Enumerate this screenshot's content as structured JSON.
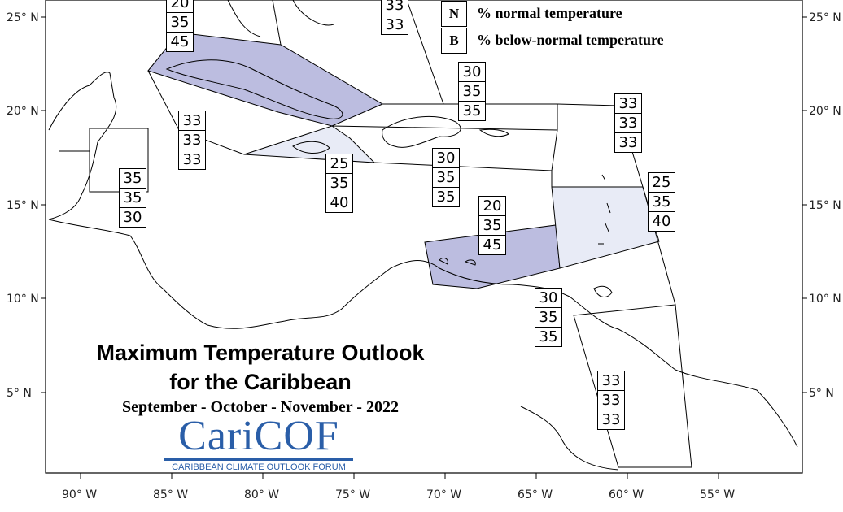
{
  "map_title": {
    "line1": "Maximum Temperature Outlook",
    "line2": "for the Caribbean",
    "period": "September - October - November - 2022"
  },
  "logo": {
    "wordmark": "CariCOF",
    "subtitle": "CARIBBEAN CLIMATE OUTLOOK FORUM"
  },
  "legend": [
    {
      "key": "N",
      "text": "% normal temperature"
    },
    {
      "key": "B",
      "text": "% below-normal temperature"
    }
  ],
  "lat_labels": [
    "25° N",
    "20° N",
    "15° N",
    "10° N",
    "5° N"
  ],
  "lon_labels": [
    "90° W",
    "85° W",
    "80° W",
    "75° W",
    "70° W",
    "65° W",
    "60° W",
    "55° W"
  ],
  "colors": {
    "below_normal_dark": "#bcbde0",
    "below_normal_light": "#e8ebf6",
    "land_line": "#000000"
  },
  "regions": [
    {
      "name": "partial-top-left",
      "values": [
        "20",
        "35",
        "45"
      ]
    },
    {
      "name": "partial-top-center",
      "values": [
        "33",
        "33"
      ]
    },
    {
      "name": "bahamas-east",
      "values": [
        "30",
        "35",
        "35"
      ]
    },
    {
      "name": "western-caribbean",
      "values": [
        "33",
        "33",
        "33"
      ]
    },
    {
      "name": "central-america",
      "values": [
        "35",
        "35",
        "30"
      ]
    },
    {
      "name": "jamaica",
      "values": [
        "25",
        "35",
        "40"
      ]
    },
    {
      "name": "hispaniola",
      "values": [
        "30",
        "35",
        "35"
      ]
    },
    {
      "name": "leeward-east",
      "values": [
        "33",
        "33",
        "33"
      ]
    },
    {
      "name": "lesser-antilles",
      "values": [
        "25",
        "35",
        "40"
      ]
    },
    {
      "name": "abc-islands",
      "values": [
        "20",
        "35",
        "45"
      ]
    },
    {
      "name": "trinidad",
      "values": [
        "30",
        "35",
        "35"
      ]
    },
    {
      "name": "guianas",
      "values": [
        "33",
        "33",
        "33"
      ]
    }
  ]
}
